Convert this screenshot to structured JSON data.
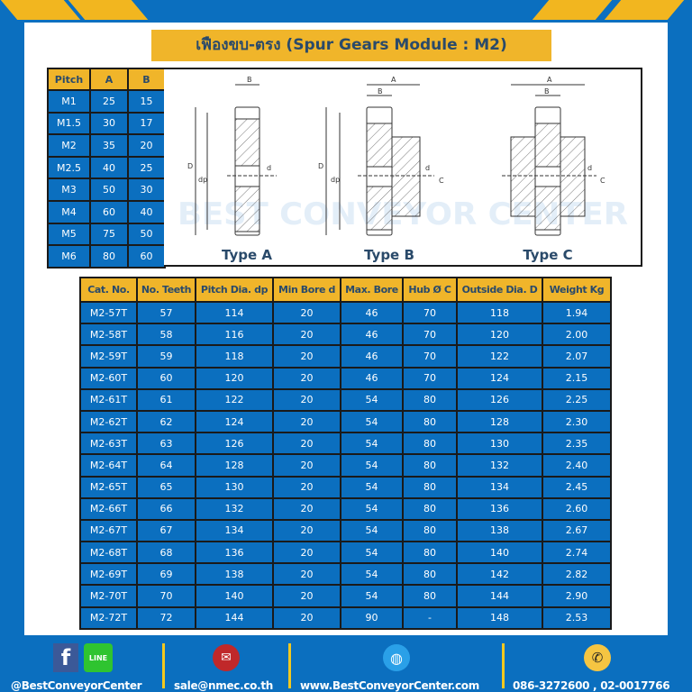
{
  "title": "เฟืองขบ-ตรง (Spur Gears Module : M2)",
  "pitch_table": {
    "headers": [
      "Pitch",
      "A",
      "B"
    ],
    "rows": [
      [
        "M1",
        "25",
        "15"
      ],
      [
        "M1.5",
        "30",
        "17"
      ],
      [
        "M2",
        "35",
        "20"
      ],
      [
        "M2.5",
        "40",
        "25"
      ],
      [
        "M3",
        "50",
        "30"
      ],
      [
        "M4",
        "60",
        "40"
      ],
      [
        "M5",
        "75",
        "50"
      ],
      [
        "M6",
        "80",
        "60"
      ]
    ]
  },
  "diagrams": [
    {
      "label": "Type A"
    },
    {
      "label": "Type B"
    },
    {
      "label": "Type C"
    }
  ],
  "diagram_labels": {
    "A": "A",
    "B": "B",
    "C": "C",
    "D": "D",
    "dp": "dp",
    "d": "d"
  },
  "watermark": "BEST CONVEYOR CENTER",
  "main_table": {
    "headers": [
      "Cat. No.",
      "No. Teeth",
      "Pitch Dia. dp",
      "Min Bore d",
      "Max. Bore",
      "Hub Ø C",
      "Outside Dia. D",
      "Weight Kg"
    ],
    "rows": [
      [
        "M2-57T",
        "57",
        "114",
        "20",
        "46",
        "70",
        "118",
        "1.94"
      ],
      [
        "M2-58T",
        "58",
        "116",
        "20",
        "46",
        "70",
        "120",
        "2.00"
      ],
      [
        "M2-59T",
        "59",
        "118",
        "20",
        "46",
        "70",
        "122",
        "2.07"
      ],
      [
        "M2-60T",
        "60",
        "120",
        "20",
        "46",
        "70",
        "124",
        "2.15"
      ],
      [
        "M2-61T",
        "61",
        "122",
        "20",
        "54",
        "80",
        "126",
        "2.25"
      ],
      [
        "M2-62T",
        "62",
        "124",
        "20",
        "54",
        "80",
        "128",
        "2.30"
      ],
      [
        "M2-63T",
        "63",
        "126",
        "20",
        "54",
        "80",
        "130",
        "2.35"
      ],
      [
        "M2-64T",
        "64",
        "128",
        "20",
        "54",
        "80",
        "132",
        "2.40"
      ],
      [
        "M2-65T",
        "65",
        "130",
        "20",
        "54",
        "80",
        "134",
        "2.45"
      ],
      [
        "M2-66T",
        "66",
        "132",
        "20",
        "54",
        "80",
        "136",
        "2.60"
      ],
      [
        "M2-67T",
        "67",
        "134",
        "20",
        "54",
        "80",
        "138",
        "2.67"
      ],
      [
        "M2-68T",
        "68",
        "136",
        "20",
        "54",
        "80",
        "140",
        "2.74"
      ],
      [
        "M2-69T",
        "69",
        "138",
        "20",
        "54",
        "80",
        "142",
        "2.82"
      ],
      [
        "M2-70T",
        "70",
        "140",
        "20",
        "54",
        "80",
        "144",
        "2.90"
      ],
      [
        "M2-72T",
        "72",
        "144",
        "20",
        "90",
        "-",
        "148",
        "2.53"
      ]
    ]
  },
  "footer": {
    "facebook": "@BestConveyorCenter",
    "line_label": "LINE",
    "email": "sale@nmec.co.th",
    "website": "www.BestConveyorCenter.com",
    "phone": "086-3272600 , 02-0017766"
  },
  "colors": {
    "brand_blue": "#0b6fbf",
    "accent_yellow": "#f0b52a"
  }
}
